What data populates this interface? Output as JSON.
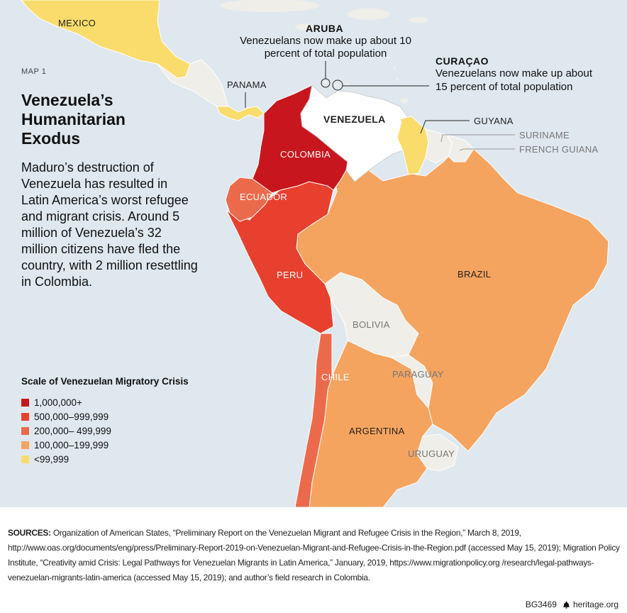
{
  "map_tag": "MAP 1",
  "title": "Venezuela’s Humanitarian Exodus",
  "subtitle": "Maduro’s destruction of Venezuela has resulted in Latin America’s worst refugee and migrant crisis. Around 5 million of Venezuela’s 32 million citizens have fled the country, with 2 million resettling in Colombia.",
  "countries": {
    "mexico": "MEXICO",
    "panama": "PANAMA",
    "venezuela": "VENEZUELA",
    "colombia": "COLOMBIA",
    "ecuador": "ECUADOR",
    "peru": "PERU",
    "guyana": "GUYANA",
    "suriname": "SURINAME",
    "french_guiana": "FRENCH GUIANA",
    "brazil": "BRAZIL",
    "bolivia": "BOLIVIA",
    "paraguay": "PARAGUAY",
    "chile": "CHILE",
    "argentina": "ARGENTINA",
    "uruguay": "URUGUAY"
  },
  "callouts": {
    "aruba": {
      "title": "ARUBA",
      "line1": "Venezuelans now make up about 10",
      "line2": "percent of total population"
    },
    "curacao": {
      "title": "CURAÇAO",
      "line1": "Venezuelans now make up about",
      "line2": "15 percent of total population"
    }
  },
  "legend": {
    "title": "Scale of Venezuelan Migratory Crisis",
    "items": [
      {
        "label": "1,000,000+",
        "color": "#c8161e"
      },
      {
        "label": "500,000–999,999",
        "color": "#e8402e"
      },
      {
        "label": "200,000– 499,999",
        "color": "#ec6a4c"
      },
      {
        "label": "100,000–199,999",
        "color": "#f5a45f"
      },
      {
        "label": "<99,999",
        "color": "#f9dc6b"
      }
    ]
  },
  "colors": {
    "ocean": "#dfe8ef",
    "no_data": "#f0eee8",
    "venezuela": "#ffffff"
  },
  "sources": {
    "label": "SOURCES:",
    "text": "Organization of American States, “Preliminary Report on the Venezuelan Migrant and Refugee Crisis in the Region,” March 8, 2019, http://www.oas.org/documents/eng/press/Preliminary-Report-2019-on-Venezuelan-Migrant-and-Refugee-Crisis-in-the-Region.pdf (accessed May 15, 2019); Migration Policy Institute, “Creativity amid Crisis: Legal Pathways for Venezuelan Migrants in Latin America,” January, 2019, https://www.migrationpolicy.org /research/legal-pathways-venezuelan-migrants-latin-america (accessed May 15, 2019); and author’s field research in Colombia."
  },
  "footer": {
    "code": "BG3469",
    "site": "heritage.org"
  }
}
